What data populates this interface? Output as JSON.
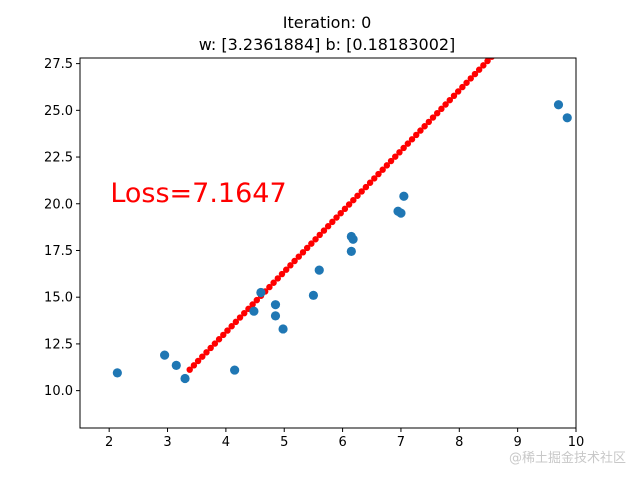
{
  "chart_data": {
    "type": "scatter",
    "title_lines": [
      "Iteration: 0",
      "w: [3.2361884] b: [0.18183002]"
    ],
    "xlim": [
      1.5,
      10
    ],
    "ylim": [
      8.0,
      27.8
    ],
    "x_ticks": [
      2,
      3,
      4,
      5,
      6,
      7,
      8,
      9,
      10
    ],
    "x_tick_labels": [
      "2",
      "3",
      "4",
      "5",
      "6",
      "7",
      "8",
      "9",
      "10"
    ],
    "y_ticks": [
      10.0,
      12.5,
      15.0,
      17.5,
      20.0,
      22.5,
      25.0,
      27.5
    ],
    "y_tick_labels": [
      "10.0",
      "12.5",
      "15.0",
      "17.5",
      "20.0",
      "22.5",
      "25.0",
      "27.5"
    ],
    "grid": false,
    "legend": "none",
    "series": [
      {
        "kind": "points",
        "color": "#1f77b4",
        "x": [
          2.14,
          2.95,
          3.15,
          3.3,
          4.15,
          4.48,
          4.6,
          4.85,
          4.85,
          4.98,
          5.5,
          5.6,
          6.15,
          6.15,
          6.18,
          6.95,
          7.0,
          7.05,
          9.7,
          9.85
        ],
        "y": [
          10.95,
          11.9,
          11.35,
          10.65,
          11.1,
          14.25,
          15.25,
          14.6,
          14.0,
          13.3,
          15.1,
          16.45,
          17.45,
          18.25,
          18.1,
          19.6,
          19.5,
          20.4,
          25.3,
          24.6
        ]
      },
      {
        "kind": "fit-line",
        "color": "#ff0000",
        "w": 3.2361884,
        "b": 0.18183002,
        "x_start": 3.38,
        "x_end": 9.85
      }
    ],
    "annotation": {
      "text": "Loss=7.1647",
      "color": "#ff0000",
      "x": 2.02,
      "y": 20.1
    }
  },
  "watermark": {
    "text": "@稀土掘金技术社区",
    "color": "#c8c8c8"
  }
}
